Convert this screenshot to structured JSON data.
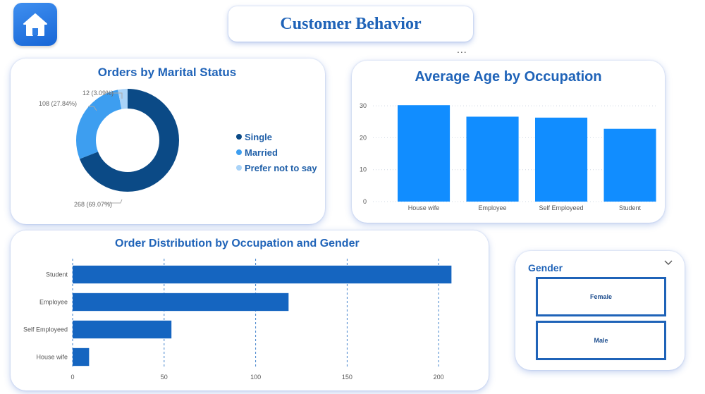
{
  "page": {
    "title": "Customer Behavior",
    "more_options": "..."
  },
  "icons": {
    "home": "home-icon",
    "chevron": "chevron-down-icon"
  },
  "colors": {
    "accent": "#1f63b8",
    "single": "#0b4a86",
    "married": "#3d9ef0",
    "prefer_not": "#a9d3f8",
    "bar_vertical": "#118dff",
    "bar_horizontal": "#1565c0"
  },
  "chart_data": [
    {
      "type": "pie",
      "title": "Orders by Marital Status",
      "categories": [
        "Single",
        "Married",
        "Prefer not to say"
      ],
      "values": [
        268,
        108,
        12
      ],
      "data_labels": [
        "268 (69.07%)",
        "108 (27.84%)",
        "12 (3.09%)"
      ],
      "legend": "right"
    },
    {
      "type": "bar",
      "title": "Average Age by Occupation",
      "categories": [
        "House wife",
        "Employee",
        "Self Employeed",
        "Student"
      ],
      "values": [
        30.2,
        26.6,
        26.3,
        22.8
      ],
      "yticks": [
        0,
        10,
        20,
        30
      ],
      "ylim": [
        0,
        34
      ],
      "grid": true
    },
    {
      "type": "bar",
      "orientation": "horizontal",
      "title": "Order Distribution by Occupation and Gender",
      "categories": [
        "Student",
        "Employee",
        "Self Employeed",
        "House wife"
      ],
      "values": [
        207,
        118,
        54,
        9
      ],
      "xticks": [
        0,
        50,
        100,
        150,
        200
      ],
      "xlim": [
        0,
        220
      ],
      "grid": true
    }
  ],
  "slicer": {
    "title": "Gender",
    "options": [
      "Female",
      "Male"
    ]
  }
}
